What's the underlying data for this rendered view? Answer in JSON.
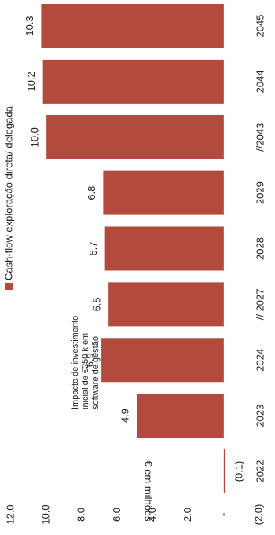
{
  "chart_data": {
    "type": "bar",
    "y_label": "€ em milhões",
    "annotation": [
      "Impacto de investimento",
      "inicial de €250 k em",
      "software de gestão"
    ],
    "categories": [
      "2022",
      "2023",
      "2024",
      "// 2027",
      "2028",
      "2029",
      "//2043",
      "2044",
      "2045"
    ],
    "series": [
      {
        "name": "Cash-flow exploração direta/ delegada",
        "color": "#b34a3e",
        "values": [
          -0.1,
          4.9,
          6.9,
          6.5,
          6.7,
          6.8,
          10.0,
          10.2,
          10.3
        ],
        "value_labels": [
          "(0.1)",
          "4.9",
          "6.9",
          "6.5",
          "6.7",
          "6.8",
          "10.0",
          "10.2",
          "10.3"
        ]
      }
    ],
    "ylim": [
      -2,
      12
    ],
    "yticks": [
      {
        "value": -2,
        "label": "(2.0)"
      },
      {
        "value": 0,
        "label": "-"
      },
      {
        "value": 2,
        "label": "2.0"
      },
      {
        "value": 4,
        "label": "4.0"
      },
      {
        "value": 6,
        "label": "6.0"
      },
      {
        "value": 8,
        "label": "8.0"
      },
      {
        "value": 10,
        "label": "10.0"
      },
      {
        "value": 12,
        "label": "12.0"
      }
    ],
    "legend": "top"
  }
}
